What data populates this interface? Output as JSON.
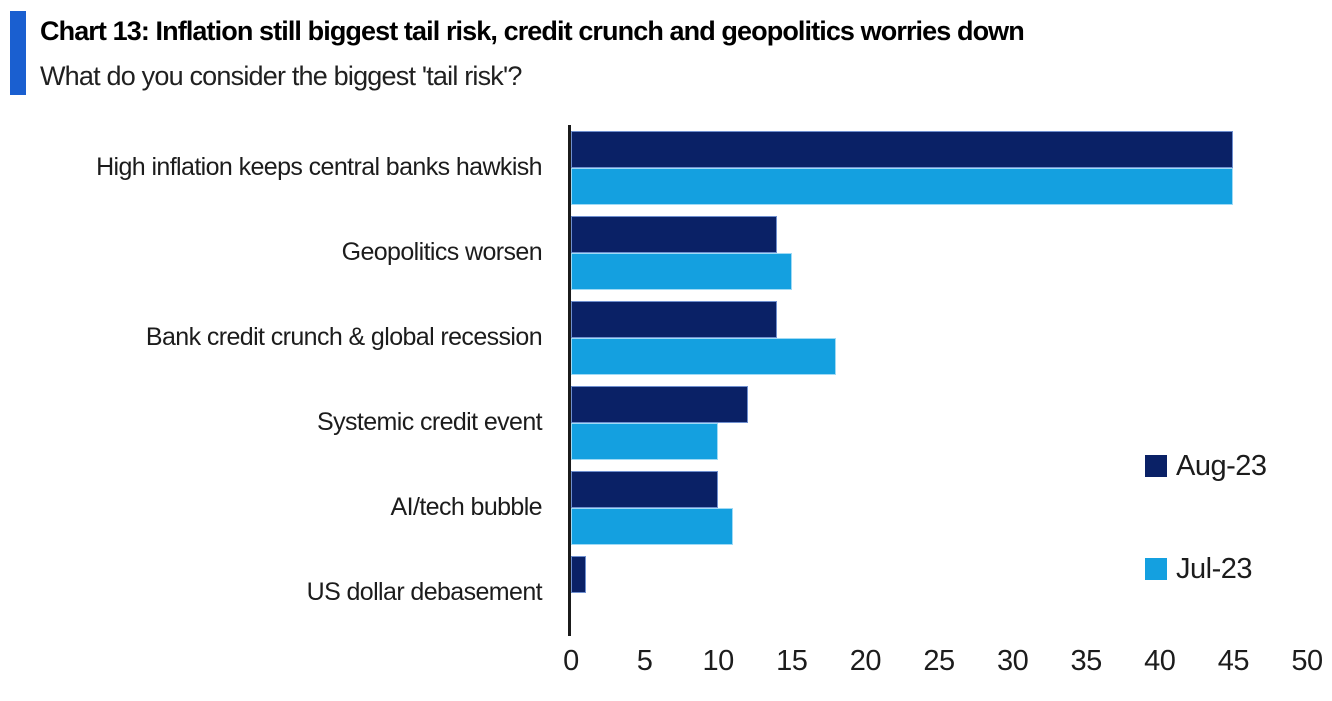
{
  "header": {
    "accent_color": "#1a5fd0"
  },
  "chart_data": {
    "type": "bar",
    "orientation": "horizontal",
    "title": "Chart 13: Inflation still biggest tail risk, credit crunch and geopolitics worries down",
    "subtitle": "What do you consider the biggest 'tail risk'?",
    "categories": [
      "High inflation keeps central banks hawkish",
      "Geopolitics worsen",
      "Bank credit crunch & global recession",
      "Systemic credit event",
      "AI/tech bubble",
      "US dollar debasement"
    ],
    "series": [
      {
        "name": "Aug-23",
        "color": "#0a2166",
        "border_color": "#6f8fcf",
        "values": [
          45,
          14,
          14,
          12,
          10,
          1
        ]
      },
      {
        "name": "Jul-23",
        "color": "#14a0e0",
        "border_color": "#9fdaf5",
        "values": [
          45,
          15,
          18,
          10,
          11,
          0
        ]
      }
    ],
    "xlabel": "",
    "ylabel": "",
    "xlim": [
      0,
      50
    ],
    "xticks": [
      0,
      5,
      10,
      15,
      20,
      25,
      30,
      35,
      40,
      45,
      50
    ],
    "grid": false,
    "legend_position": "right-middle",
    "axis_color": "#1b1b1b",
    "text_color": "#1c1c1c"
  }
}
